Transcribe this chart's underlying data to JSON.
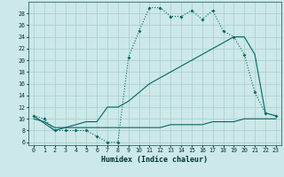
{
  "title": "",
  "xlabel": "Humidex (Indice chaleur)",
  "bg_color": "#cce8e8",
  "grid_color": "#b0d0d0",
  "line_color": "#006666",
  "xlim": [
    -0.5,
    23.5
  ],
  "ylim": [
    5.5,
    30
  ],
  "yticks": [
    6,
    8,
    10,
    12,
    14,
    16,
    18,
    20,
    22,
    24,
    26,
    28
  ],
  "xticks": [
    0,
    1,
    2,
    3,
    4,
    5,
    6,
    7,
    8,
    9,
    10,
    11,
    12,
    13,
    14,
    15,
    16,
    17,
    18,
    19,
    20,
    21,
    22,
    23
  ],
  "line1_x": [
    0,
    1,
    2,
    3,
    4,
    5,
    6,
    7,
    8,
    9,
    10,
    11,
    12,
    13,
    14,
    15,
    16,
    17,
    18,
    19,
    20,
    21,
    22,
    23
  ],
  "line1_y": [
    10.5,
    10.0,
    8.0,
    8.0,
    8.0,
    8.0,
    7.0,
    6.0,
    6.0,
    20.5,
    25.0,
    29.0,
    29.0,
    27.5,
    27.5,
    28.5,
    27.0,
    28.5,
    25.0,
    24.0,
    21.0,
    14.5,
    11.0,
    10.5
  ],
  "line2_x": [
    0,
    1,
    2,
    3,
    4,
    5,
    6,
    7,
    8,
    9,
    10,
    11,
    12,
    13,
    14,
    15,
    16,
    17,
    18,
    19,
    20,
    21,
    22,
    23
  ],
  "line2_y": [
    10.0,
    9.5,
    8.5,
    8.5,
    8.5,
    8.5,
    8.5,
    8.5,
    8.5,
    8.5,
    8.5,
    8.5,
    8.5,
    9.0,
    9.0,
    9.0,
    9.0,
    9.5,
    9.5,
    9.5,
    10.0,
    10.0,
    10.0,
    10.0
  ],
  "line3_x": [
    0,
    2,
    3,
    4,
    5,
    6,
    7,
    8,
    9,
    10,
    11,
    12,
    13,
    14,
    15,
    16,
    17,
    18,
    19,
    20,
    21,
    22,
    23
  ],
  "line3_y": [
    10.5,
    8.0,
    8.5,
    9.0,
    9.5,
    9.5,
    12.0,
    12.0,
    13.0,
    14.5,
    16.0,
    17.0,
    18.0,
    19.0,
    20.0,
    21.0,
    22.0,
    23.0,
    24.0,
    24.0,
    21.0,
    11.0,
    10.5
  ]
}
